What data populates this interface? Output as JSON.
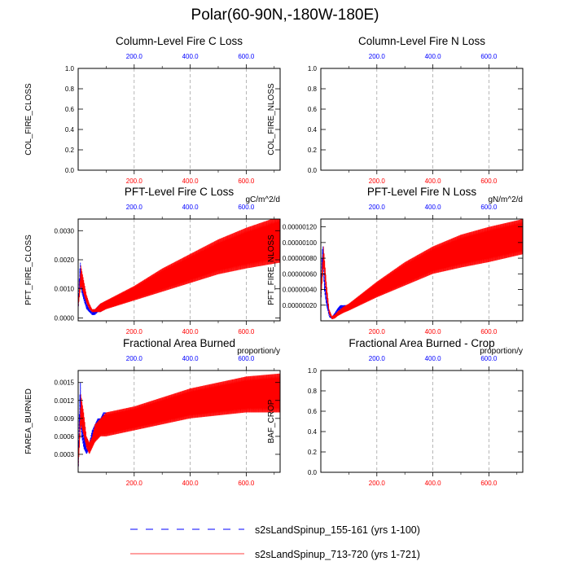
{
  "page_title": "Polar(60-90N,-180W-180E)",
  "legend": [
    {
      "label": "s2sLandSpinup_155-161 (yrs 1-100)",
      "color": "#0000ff",
      "style": "dashed"
    },
    {
      "label": "s2sLandSpinup_713-720 (yrs 1-721)",
      "color": "#ff0000",
      "style": "solid"
    }
  ],
  "colors": {
    "series_a": "#0000ff",
    "series_b": "#ff0000",
    "top_ticks": "#0000ff",
    "bottom_ticks": "#ff0000",
    "grid": "#999999"
  },
  "chart_data": [
    {
      "id": "col-fire-c",
      "type": "line",
      "title": "Column-Level Fire C Loss",
      "ylabel": "COL_FIRE_CLOSS",
      "units": "",
      "xlim": [
        0,
        721
      ],
      "ylim": [
        0,
        1
      ],
      "yticks": [
        "0.0",
        "0.2",
        "0.4",
        "0.6",
        "0.8",
        "1.0"
      ],
      "yvals": [
        0,
        0.2,
        0.4,
        0.6,
        0.8,
        1.0
      ],
      "top_xticks": [
        "200.0",
        "400.0",
        "600.0"
      ],
      "bottom_xticks": [
        "200.0",
        "400.0",
        "600.0"
      ],
      "xtick_values": [
        200,
        400,
        600
      ],
      "grid": "vertical-dashed",
      "series": []
    },
    {
      "id": "col-fire-n",
      "type": "line",
      "title": "Column-Level Fire N Loss",
      "ylabel": "COL_FIRE_NLOSS",
      "units": "",
      "xlim": [
        0,
        721
      ],
      "ylim": [
        0,
        1
      ],
      "yticks": [
        "0.0",
        "0.2",
        "0.4",
        "0.6",
        "0.8",
        "1.0"
      ],
      "yvals": [
        0,
        0.2,
        0.4,
        0.6,
        0.8,
        1.0
      ],
      "top_xticks": [
        "200.0",
        "400.0",
        "600.0"
      ],
      "bottom_xticks": [
        "200.0",
        "400.0",
        "600.0"
      ],
      "xtick_values": [
        200,
        400,
        600
      ],
      "grid": "vertical-dashed",
      "series": []
    },
    {
      "id": "pft-fire-c",
      "type": "line",
      "title": "PFT-Level Fire C Loss",
      "ylabel": "PFT_FIRE_CLOSS",
      "units": "gC/m^2/d",
      "xlim": [
        0,
        721
      ],
      "ylim": [
        -0.0001,
        0.0034
      ],
      "yticks": [
        "0.0000",
        "0.0010",
        "0.0020",
        "0.0030"
      ],
      "yvals": [
        0,
        0.001,
        0.002,
        0.003
      ],
      "top_xticks": [
        "200.0",
        "400.0",
        "600.0"
      ],
      "bottom_xticks": [
        "200.0",
        "400.0",
        "600.0"
      ],
      "xtick_values": [
        200,
        400,
        600
      ],
      "grid": "vertical-dashed",
      "series": [
        {
          "key": "a",
          "x": [
            1,
            5,
            8,
            12,
            20,
            30,
            40,
            50,
            60,
            70,
            80,
            90,
            100
          ],
          "lo": [
            0.0004,
            0.001,
            0.0012,
            0.0009,
            0.0006,
            0.0003,
            0.0002,
            0.0001,
            0.0001,
            0.0002,
            0.0002,
            0.0003,
            0.0003
          ],
          "hi": [
            0.0006,
            0.0016,
            0.0019,
            0.0014,
            0.0009,
            0.0005,
            0.0003,
            0.0002,
            0.0003,
            0.0004,
            0.0005,
            0.0005,
            0.0006
          ]
        },
        {
          "key": "b",
          "x": [
            1,
            10,
            20,
            30,
            40,
            50,
            60,
            80,
            100,
            200,
            300,
            400,
            500,
            600,
            721
          ],
          "lo": [
            0.0004,
            0.0011,
            0.0008,
            0.0005,
            0.0003,
            0.0002,
            0.0002,
            0.0002,
            0.0003,
            0.0006,
            0.0009,
            0.0012,
            0.0015,
            0.0017,
            0.0019
          ],
          "hi": [
            0.0006,
            0.0018,
            0.0013,
            0.0008,
            0.0005,
            0.0003,
            0.0003,
            0.0005,
            0.0006,
            0.0011,
            0.0017,
            0.0022,
            0.0027,
            0.0031,
            0.0035
          ]
        }
      ]
    },
    {
      "id": "pft-fire-n",
      "type": "line",
      "title": "PFT-Level Fire N Loss",
      "ylabel": "PFT_FIRE_NLOSS",
      "units": "gN/m^2/d",
      "xlim": [
        0,
        721
      ],
      "ylim": [
        0,
        1.3e-06
      ],
      "yticks": [
        "0.00000020",
        "0.00000040",
        "0.00000060",
        "0.00000080",
        "0.00000100",
        "0.00000120"
      ],
      "yvals": [
        2e-07,
        4e-07,
        6e-07,
        8e-07,
        1e-06,
        1.2e-06
      ],
      "top_xticks": [
        "200.0",
        "400.0",
        "600.0"
      ],
      "bottom_xticks": [
        "200.0",
        "400.0",
        "600.0"
      ],
      "xtick_values": [
        200,
        400,
        600
      ],
      "grid": "vertical-dashed",
      "series": [
        {
          "key": "a",
          "x": [
            1,
            5,
            8,
            12,
            20,
            30,
            40,
            50,
            60,
            70,
            80,
            90,
            100
          ],
          "lo": [
            3e-07,
            6e-07,
            8e-07,
            4e-07,
            2e-07,
            5e-08,
            2e-08,
            5e-08,
            1e-07,
            1.2e-07,
            1.3e-07,
            1.4e-07,
            1.5e-07
          ],
          "hi": [
            5e-07,
            9e-07,
            9.5e-07,
            6e-07,
            3e-07,
            1e-07,
            6e-08,
            1e-07,
            1.6e-07,
            2e-07,
            2e-07,
            2e-07,
            2e-07
          ]
        },
        {
          "key": "b",
          "x": [
            1,
            10,
            20,
            30,
            40,
            50,
            60,
            80,
            100,
            200,
            300,
            400,
            500,
            600,
            721
          ],
          "lo": [
            3e-07,
            7e-07,
            3e-07,
            8e-08,
            2e-08,
            3e-08,
            6e-08,
            1e-07,
            1.3e-07,
            3e-07,
            4.5e-07,
            6e-07,
            6.8e-07,
            7.5e-07,
            8.5e-07
          ],
          "hi": [
            5e-07,
            9.5e-07,
            5e-07,
            1.5e-07,
            6e-08,
            8e-08,
            1.2e-07,
            1.8e-07,
            2.2e-07,
            5e-07,
            7.5e-07,
            9.5e-07,
            1.1e-06,
            1.2e-06,
            1.3e-06
          ]
        }
      ]
    },
    {
      "id": "farea-burned",
      "type": "line",
      "title": "Fractional Area Burned",
      "ylabel": "FAREA_BURNED",
      "units": "proportion/y",
      "xlim": [
        0,
        721
      ],
      "ylim": [
        0,
        0.0017
      ],
      "yticks": [
        "0.0003",
        "0.0006",
        "0.0009",
        "0.0012",
        "0.0015"
      ],
      "yvals": [
        0.0003,
        0.0006,
        0.0009,
        0.0012,
        0.0015
      ],
      "top_xticks": [
        "200.0",
        "400.0",
        "600.0"
      ],
      "bottom_xticks": [
        "200.0",
        "400.0",
        "600.0"
      ],
      "xtick_values": [
        200,
        400,
        600
      ],
      "grid": "vertical-dashed",
      "series": [
        {
          "key": "a",
          "x": [
            1,
            5,
            8,
            12,
            20,
            30,
            40,
            50,
            60,
            70,
            80,
            90,
            100
          ],
          "lo": [
            0.0001,
            0.0007,
            0.0009,
            0.0006,
            0.0004,
            0.0003,
            0.0004,
            0.0005,
            0.0006,
            0.0006,
            0.0007,
            0.0007,
            0.0007
          ],
          "hi": [
            0.0003,
            0.0012,
            0.0015,
            0.001,
            0.0007,
            0.0004,
            0.0005,
            0.0007,
            0.0008,
            0.0009,
            0.0009,
            0.001,
            0.001
          ]
        },
        {
          "key": "b",
          "x": [
            1,
            10,
            20,
            30,
            40,
            50,
            60,
            80,
            100,
            200,
            300,
            400,
            500,
            600,
            721
          ],
          "lo": [
            0.0001,
            0.0008,
            0.0006,
            0.0004,
            0.0003,
            0.0004,
            0.0005,
            0.0006,
            0.0006,
            0.0007,
            0.0008,
            0.0009,
            0.00095,
            0.001,
            0.001
          ],
          "hi": [
            0.0003,
            0.0013,
            0.001,
            0.0006,
            0.0005,
            0.0006,
            0.0008,
            0.0009,
            0.001,
            0.0011,
            0.00125,
            0.0014,
            0.0015,
            0.0016,
            0.00165
          ]
        }
      ]
    },
    {
      "id": "baf-crop",
      "type": "line",
      "title": "Fractional Area Burned - Crop",
      "ylabel": "BAF_CROP",
      "units": "proportion/y",
      "xlim": [
        0,
        721
      ],
      "ylim": [
        0,
        1
      ],
      "yticks": [
        "0.0",
        "0.2",
        "0.4",
        "0.6",
        "0.8",
        "1.0"
      ],
      "yvals": [
        0,
        0.2,
        0.4,
        0.6,
        0.8,
        1.0
      ],
      "top_xticks": [
        "200.0",
        "400.0",
        "600.0"
      ],
      "bottom_xticks": [
        "200.0",
        "400.0",
        "600.0"
      ],
      "xtick_values": [
        200,
        400,
        600
      ],
      "grid": "vertical-dashed",
      "series": []
    }
  ]
}
